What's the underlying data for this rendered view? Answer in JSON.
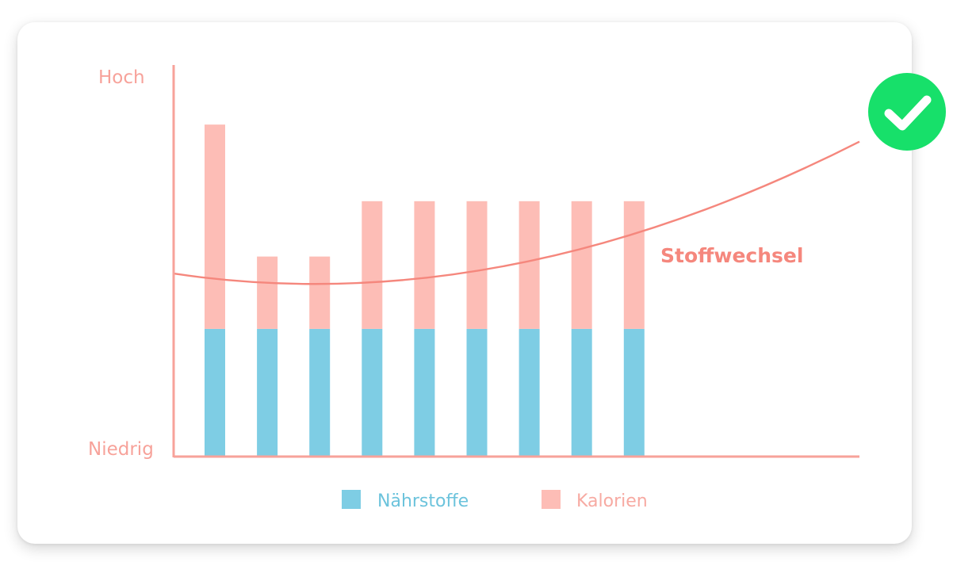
{
  "chart_data": {
    "type": "bar",
    "stacked": true,
    "y_axis_labels": {
      "top": "Hoch",
      "bottom": "Niedrig"
    },
    "categories": [
      "",
      "",
      "",
      "",
      "",
      "",
      "",
      "",
      ""
    ],
    "series": [
      {
        "name": "Nährstoffe",
        "color": "#7ecde4",
        "values": [
          3,
          3,
          3,
          3,
          3,
          3,
          3,
          3,
          3
        ]
      },
      {
        "name": "Kalorien",
        "color": "#fdbdb6",
        "values": [
          4.8,
          1.7,
          1.7,
          3,
          3,
          3,
          3,
          3,
          3
        ]
      }
    ],
    "ylim": [
      0,
      9.2
    ],
    "curve": {
      "label": "Stoffwechsel",
      "color": "#f5877d",
      "description_values": [
        [
          0,
          4.3
        ],
        [
          0.35,
          4.25
        ],
        [
          0.5,
          4.28
        ],
        [
          0.7,
          5.0
        ],
        [
          1,
          7.4
        ]
      ]
    },
    "legend_position": "bottom-center",
    "status_icon": "check-circle-icon",
    "status_color": "#17e06a",
    "axis_color": "#f7a29a"
  }
}
